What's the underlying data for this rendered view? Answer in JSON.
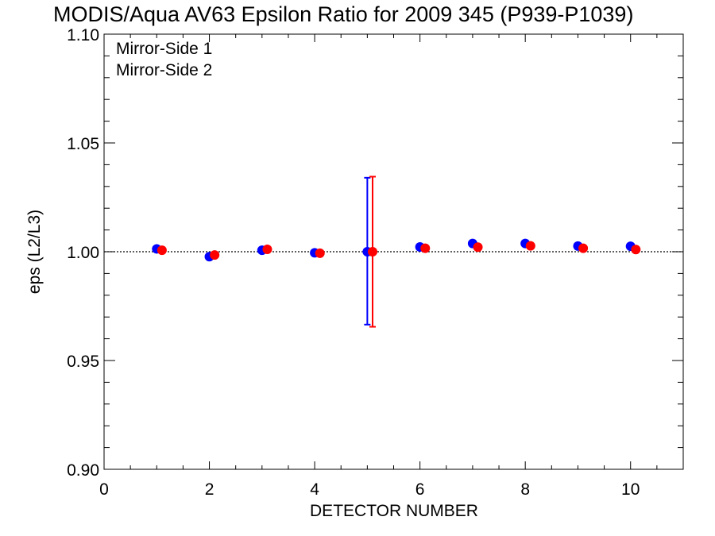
{
  "chart_data": {
    "type": "scatter",
    "title": "MODIS/Aqua AV63 Epsilon Ratio for 2009 345 (P939-P1039)",
    "xlabel": "DETECTOR NUMBER",
    "ylabel": "eps (L2/L3)",
    "xlim": [
      0,
      11
    ],
    "ylim": [
      0.9,
      1.1
    ],
    "x_ticks": [
      0,
      2,
      4,
      6,
      8,
      10
    ],
    "x_tick_labels": [
      "0",
      "2",
      "4",
      "6",
      "8",
      "10"
    ],
    "y_ticks": [
      0.9,
      0.95,
      1.0,
      1.05,
      1.1
    ],
    "y_tick_labels": [
      "0.90",
      "0.95",
      "1.00",
      "1.05",
      "1.10"
    ],
    "reference_line": 1.0,
    "grid": false,
    "legend_position": "top-left",
    "series": [
      {
        "name": "Mirror-Side 1",
        "color": "#0000ff",
        "x": [
          1,
          2,
          3,
          4,
          5,
          6,
          7,
          8,
          9,
          10
        ],
        "values": [
          1.0013,
          0.9977,
          1.0007,
          0.9995,
          1.0,
          1.0022,
          1.0038,
          1.0038,
          1.0026,
          1.0025
        ],
        "error_bars": [
          null,
          null,
          null,
          null,
          [
            0.9665,
            1.034
          ],
          null,
          null,
          null,
          null,
          null
        ]
      },
      {
        "name": "Mirror-Side 2",
        "color": "#ff0000",
        "x": [
          1.1,
          2.1,
          3.1,
          4.1,
          5.1,
          6.1,
          7.1,
          8.1,
          9.1,
          10.1
        ],
        "values": [
          1.0007,
          0.9985,
          1.0011,
          0.9993,
          1.0,
          1.0016,
          1.0021,
          1.0027,
          1.0016,
          1.001
        ],
        "error_bars": [
          null,
          null,
          null,
          null,
          [
            0.9655,
            1.0345
          ],
          null,
          null,
          null,
          null,
          null
        ]
      }
    ]
  }
}
